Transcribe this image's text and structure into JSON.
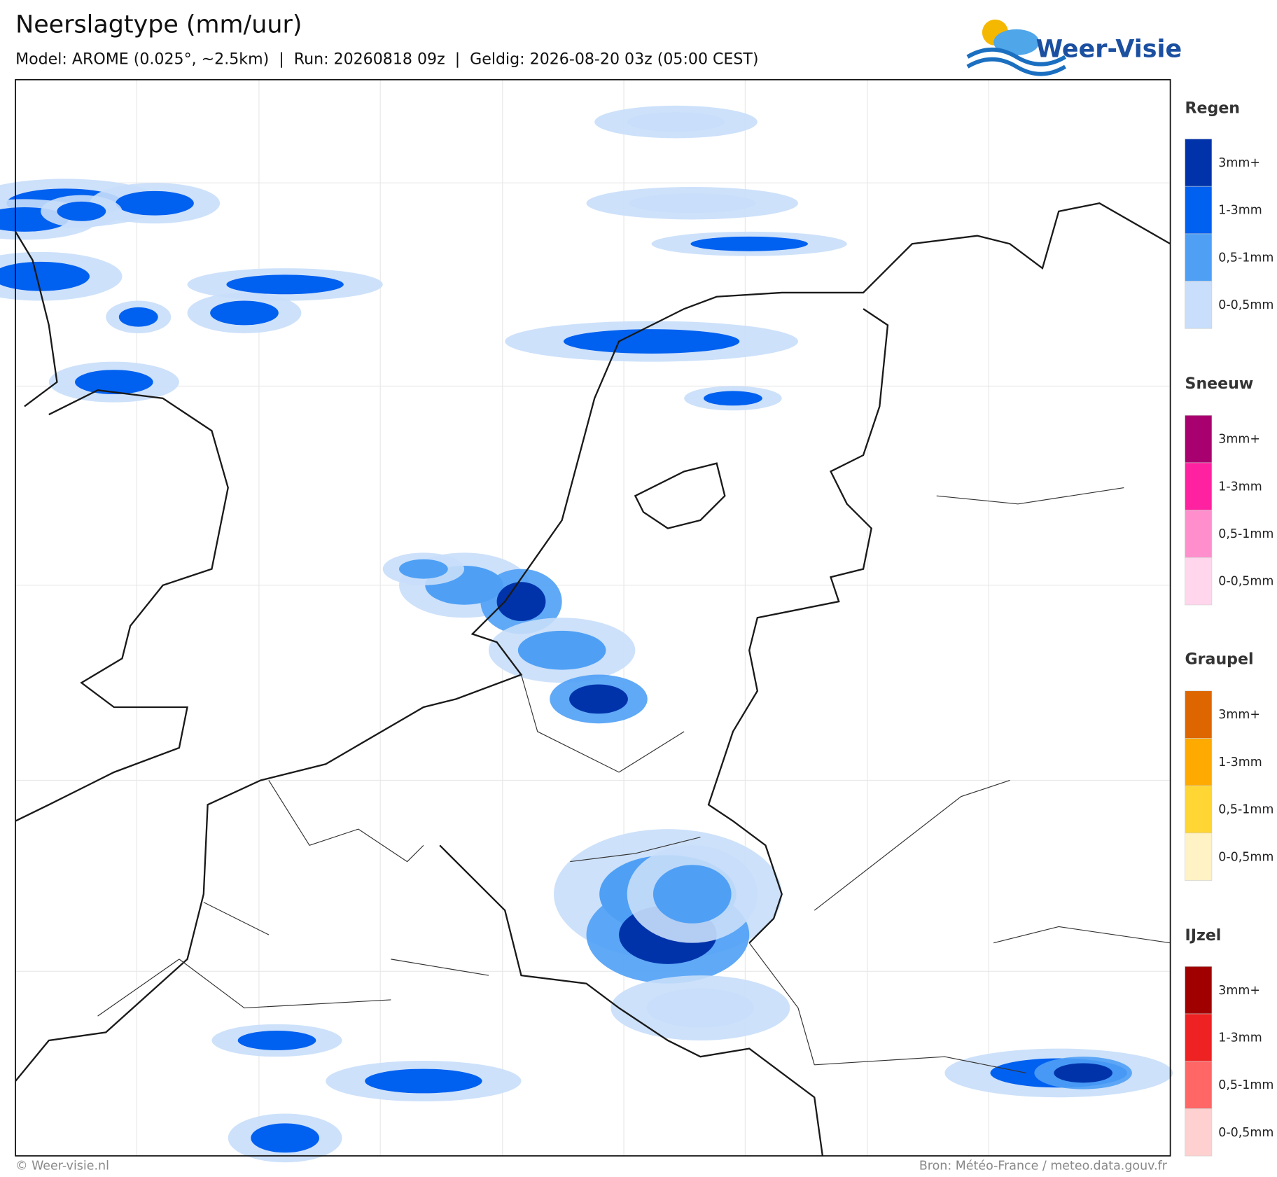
{
  "header": {
    "title": "Neerslagtype (mm/uur)",
    "subtitle": "Model: AROME (0.025°, ~2.5km)  |  Run: 20260818 09z  |  Geldig: 2026-08-20 03z (05:00 CEST)",
    "logo": "Weer-Visie"
  },
  "legend": [
    {
      "title": "Regen",
      "items": [
        {
          "label": "3mm+",
          "color": "#0033aa"
        },
        {
          "label": "1-3mm",
          "color": "#0060f0"
        },
        {
          "label": "0,5-1mm",
          "color": "#4fa0f5"
        },
        {
          "label": "0-0,5mm",
          "color": "#c8defa"
        }
      ]
    },
    {
      "title": "Sneeuw",
      "items": [
        {
          "label": "3mm+",
          "color": "#a8006e"
        },
        {
          "label": "1-3mm",
          "color": "#ff22a0"
        },
        {
          "label": "0,5-1mm",
          "color": "#ff8fcc"
        },
        {
          "label": "0-0,5mm",
          "color": "#ffd6ec"
        }
      ]
    },
    {
      "title": "Graupel",
      "items": [
        {
          "label": "3mm+",
          "color": "#dd6600"
        },
        {
          "label": "1-3mm",
          "color": "#ffaa00"
        },
        {
          "label": "0,5-1mm",
          "color": "#ffd633"
        },
        {
          "label": "0-0,5mm",
          "color": "#fff2c4"
        }
      ]
    },
    {
      "title": "IJzel",
      "items": [
        {
          "label": "3mm+",
          "color": "#a00000"
        },
        {
          "label": "1-3mm",
          "color": "#ee2222"
        },
        {
          "label": "0,5-1mm",
          "color": "#ff6666"
        },
        {
          "label": "0-0,5mm",
          "color": "#ffd0d0"
        }
      ]
    }
  ],
  "footer": {
    "left": "© Weer-visie.nl",
    "right": "Bron: Météo-France / meteo.data.gouv.fr"
  }
}
